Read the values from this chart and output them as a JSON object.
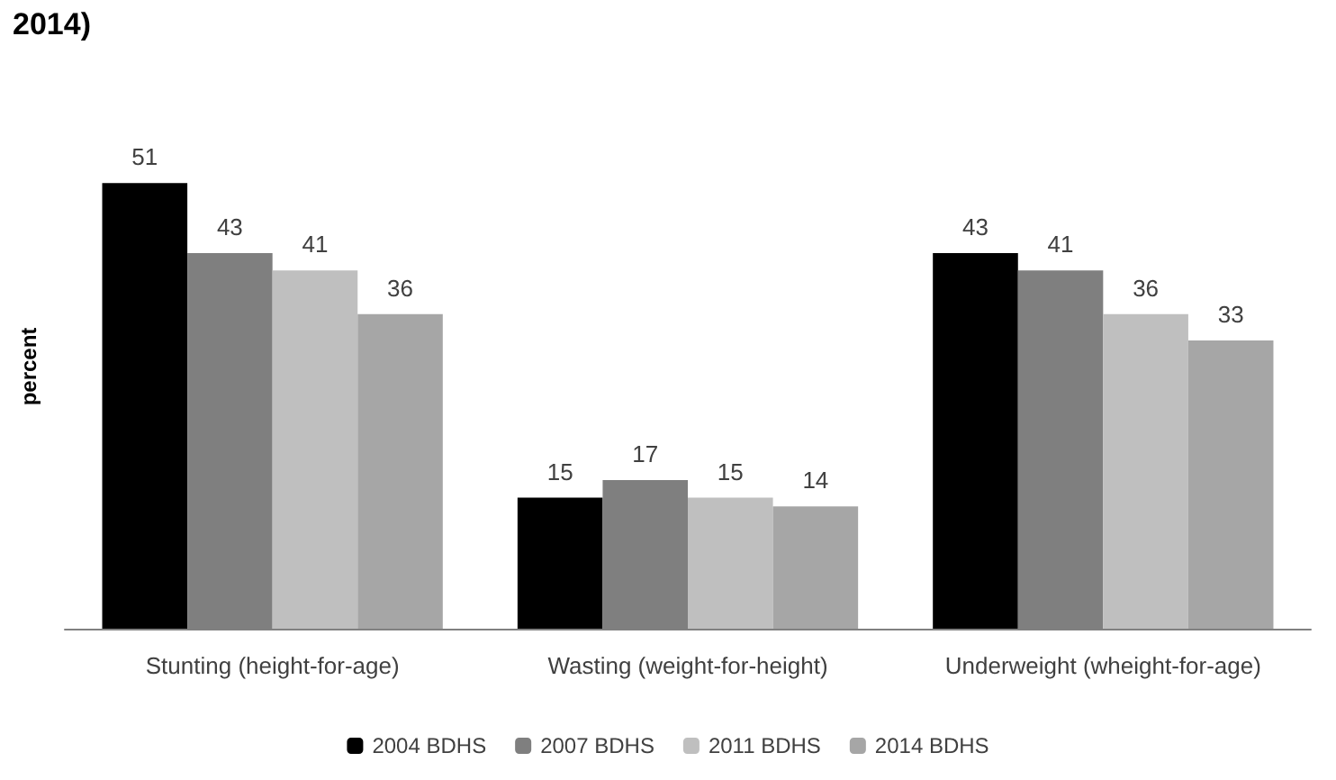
{
  "chart_data": {
    "type": "bar",
    "title": "2014)",
    "ylabel": "percent",
    "categories": [
      "Stunting (height-for-age)",
      "Wasting (weight-for-height)",
      "Underweight (wheight-for-age)"
    ],
    "series": [
      {
        "name": "2004 BDHS",
        "color": "#000000",
        "values": [
          51,
          15,
          43
        ]
      },
      {
        "name": "2007 BDHS",
        "color": "#7f7f7f",
        "values": [
          43,
          17,
          41
        ]
      },
      {
        "name": "2011 BDHS",
        "color": "#bfbfbf",
        "values": [
          41,
          15,
          36
        ]
      },
      {
        "name": "2014 BDHS",
        "color": "#a6a6a6",
        "values": [
          36,
          14,
          33
        ]
      }
    ],
    "data_labels": true,
    "grid": false,
    "legend": "bottom"
  }
}
